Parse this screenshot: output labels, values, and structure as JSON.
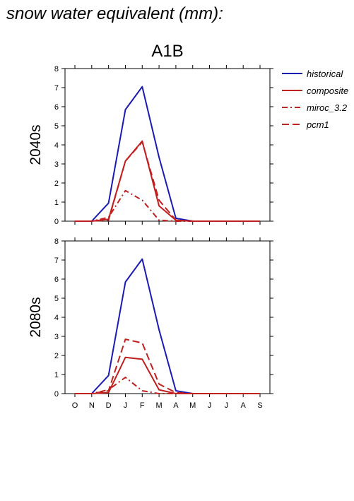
{
  "page_title": "snow water equivalent (mm):",
  "colors": {
    "historical": "#1a1ab4",
    "scenario": "#c0201e",
    "axis": "#000000"
  },
  "legend": [
    {
      "name": "historical",
      "style": "solid",
      "color": "#1a1ab4"
    },
    {
      "name": "composite",
      "style": "solid",
      "color": "#c0201e"
    },
    {
      "name": "miroc_3.2",
      "style": "dashdot",
      "color": "#c0201e"
    },
    {
      "name": "pcm1",
      "style": "dashed",
      "color": "#c0201e"
    }
  ],
  "chart_data": [
    {
      "type": "line",
      "title": "A1B",
      "ylabel": "2040s",
      "categories": [
        "O",
        "N",
        "D",
        "J",
        "F",
        "M",
        "A",
        "M",
        "J",
        "J",
        "A",
        "S"
      ],
      "ylim": [
        0,
        8
      ],
      "yticks": [
        0,
        1,
        2,
        3,
        4,
        5,
        6,
        7,
        8
      ],
      "show_xtick_labels": false,
      "legend_position": "right",
      "series": [
        {
          "name": "historical",
          "values": [
            0,
            0,
            0.95,
            5.85,
            7.05,
            3.35,
            0.15,
            0,
            0,
            0,
            0,
            0
          ]
        },
        {
          "name": "composite",
          "values": [
            0,
            0,
            0.1,
            3.15,
            4.2,
            0.8,
            0.05,
            0,
            0,
            0,
            0,
            0
          ]
        },
        {
          "name": "miroc_3.2",
          "values": [
            0,
            0,
            0.2,
            1.6,
            1.1,
            0.05,
            0,
            0,
            0,
            0,
            0,
            0
          ]
        },
        {
          "name": "pcm1",
          "values": [
            0,
            0,
            0.05,
            3.15,
            4.15,
            1.1,
            0.05,
            0,
            0,
            0,
            0,
            0
          ]
        }
      ]
    },
    {
      "type": "line",
      "title": "",
      "ylabel": "2080s",
      "categories": [
        "O",
        "N",
        "D",
        "J",
        "F",
        "M",
        "A",
        "M",
        "J",
        "J",
        "A",
        "S"
      ],
      "ylim": [
        0,
        8
      ],
      "yticks": [
        0,
        1,
        2,
        3,
        4,
        5,
        6,
        7,
        8
      ],
      "show_xtick_labels": true,
      "series": [
        {
          "name": "historical",
          "values": [
            0,
            0,
            0.95,
            5.85,
            7.05,
            3.35,
            0.15,
            0,
            0,
            0,
            0,
            0
          ]
        },
        {
          "name": "composite",
          "values": [
            0,
            0,
            0.05,
            1.9,
            1.8,
            0.2,
            0,
            0,
            0,
            0,
            0,
            0
          ]
        },
        {
          "name": "miroc_3.2",
          "values": [
            0,
            0,
            0.2,
            0.85,
            0.15,
            0,
            0,
            0,
            0,
            0,
            0,
            0
          ]
        },
        {
          "name": "pcm1",
          "values": [
            0,
            0,
            0.15,
            2.85,
            2.65,
            0.5,
            0.05,
            0,
            0,
            0,
            0,
            0
          ]
        }
      ]
    }
  ]
}
